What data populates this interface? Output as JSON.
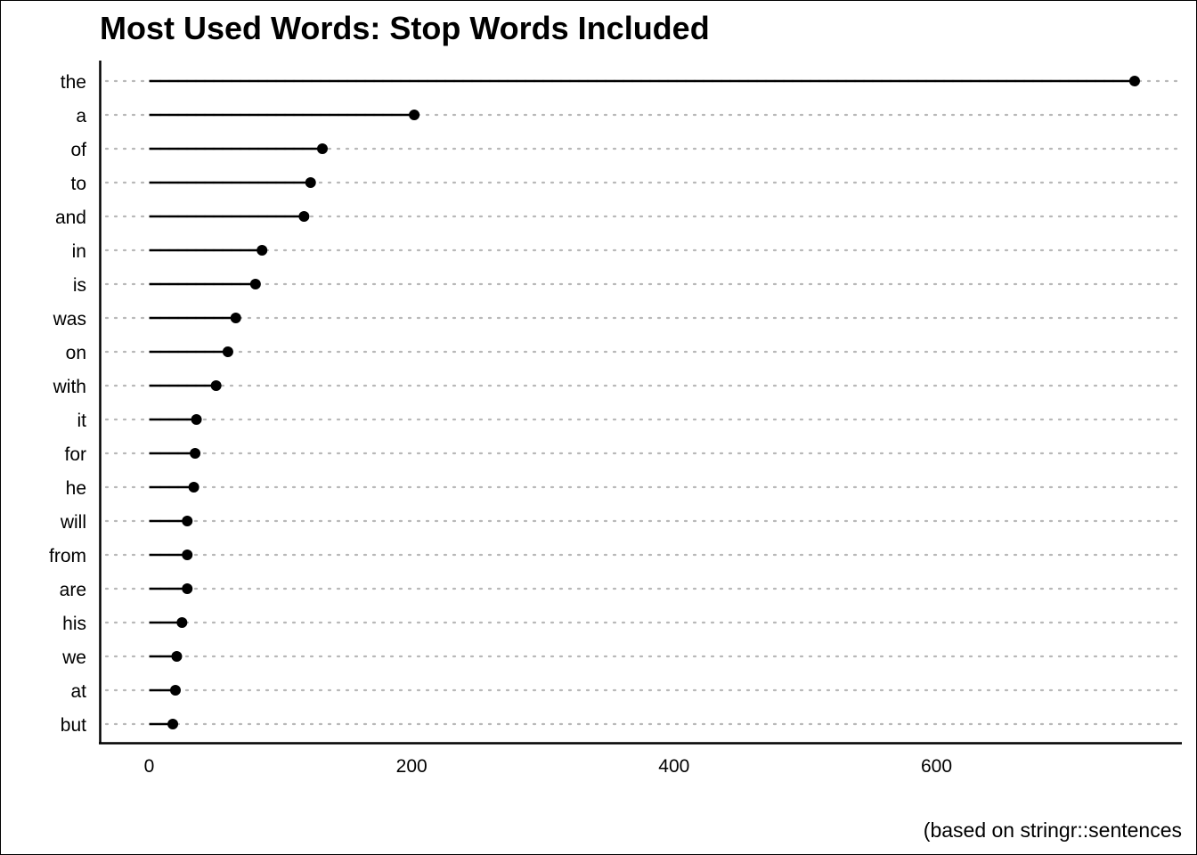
{
  "chart_data": {
    "type": "lollipop",
    "title": "Most Used Words: Stop Words Included",
    "caption": "(based on stringr::sentences",
    "xlabel": "",
    "ylabel": "",
    "xlim": [
      -37,
      787
    ],
    "xticks": [
      0,
      200,
      400,
      600
    ],
    "grid": "horizontal dotted",
    "categories": [
      "the",
      "a",
      "of",
      "to",
      "and",
      "in",
      "is",
      "was",
      "on",
      "with",
      "it",
      "for",
      "he",
      "will",
      "from",
      "are",
      "his",
      "we",
      "at",
      "but"
    ],
    "values": [
      751,
      202,
      132,
      123,
      118,
      86,
      81,
      66,
      60,
      51,
      36,
      35,
      34,
      29,
      29,
      29,
      25,
      21,
      20,
      18
    ]
  }
}
